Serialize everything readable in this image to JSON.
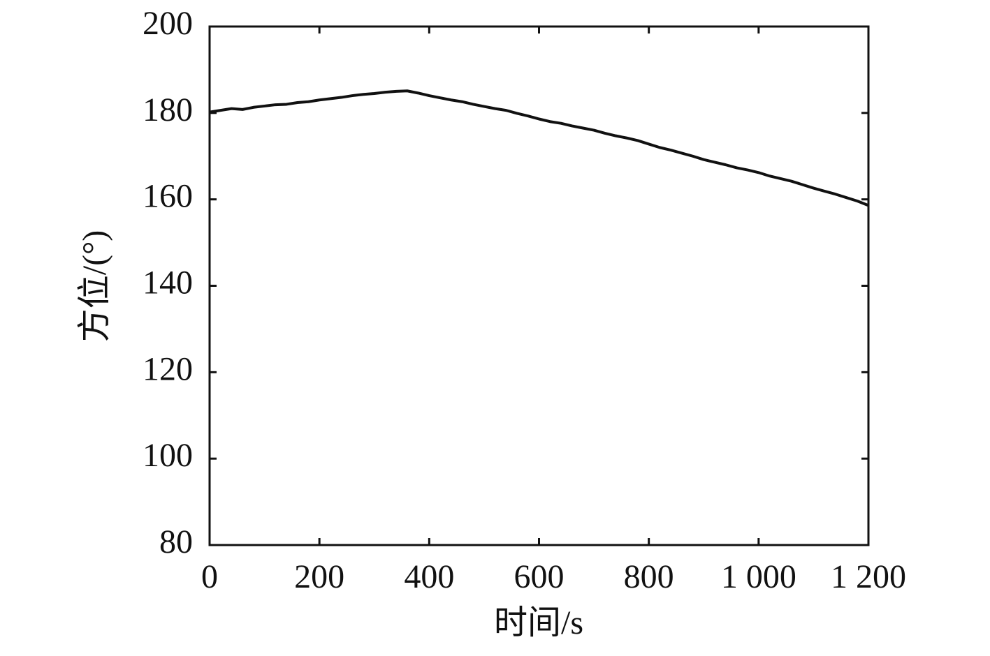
{
  "chart_data": {
    "type": "line",
    "x_label": "时间/s",
    "y_label": "方位/(°)",
    "x": [
      0,
      20,
      40,
      60,
      80,
      100,
      120,
      140,
      160,
      180,
      200,
      220,
      240,
      260,
      280,
      300,
      320,
      340,
      360,
      380,
      400,
      420,
      440,
      460,
      480,
      500,
      520,
      540,
      560,
      580,
      600,
      620,
      640,
      660,
      680,
      700,
      720,
      740,
      760,
      780,
      800,
      820,
      840,
      860,
      880,
      900,
      920,
      940,
      960,
      980,
      1000,
      1020,
      1040,
      1060,
      1080,
      1100,
      1120,
      1140,
      1160,
      1180,
      1200
    ],
    "values": [
      180.2,
      180.6,
      181.0,
      180.8,
      181.3,
      181.6,
      181.9,
      182.0,
      182.4,
      182.6,
      183.0,
      183.3,
      183.6,
      184.0,
      184.3,
      184.5,
      184.8,
      185.0,
      185.1,
      184.6,
      184.0,
      183.5,
      183.0,
      182.6,
      182.0,
      181.5,
      181.0,
      180.6,
      179.9,
      179.3,
      178.6,
      178.0,
      177.6,
      177.0,
      176.5,
      176.0,
      175.3,
      174.7,
      174.2,
      173.6,
      172.8,
      172.0,
      171.4,
      170.7,
      170.0,
      169.2,
      168.6,
      168.0,
      167.3,
      166.8,
      166.2,
      165.4,
      164.8,
      164.2,
      163.4,
      162.6,
      161.9,
      161.2,
      160.4,
      159.6,
      158.6
    ],
    "color": "#111111",
    "xlim": [
      0,
      1200
    ],
    "xticks": [
      0,
      200,
      400,
      600,
      800,
      {
        "value": 1000,
        "label": "1 000"
      },
      {
        "value": 1200,
        "label": "1 200"
      }
    ],
    "ylim": [
      80,
      200
    ],
    "yticks": [
      80,
      100,
      120,
      140,
      160,
      180,
      200
    ],
    "grid": false
  }
}
